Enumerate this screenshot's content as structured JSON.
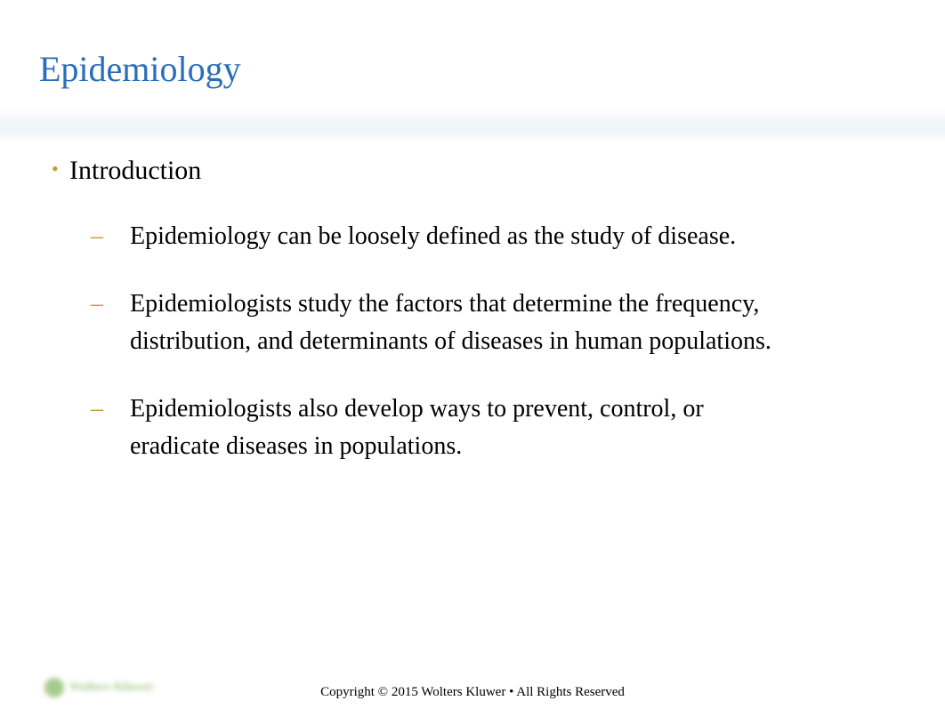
{
  "title": {
    "text": "Epidemiology",
    "color": "#2a6ebb",
    "fontsize": 40
  },
  "content": {
    "level1": {
      "text": "Introduction",
      "bullet_color": "#c79a3a",
      "fontsize": 30
    },
    "level2": [
      {
        "text": "Epidemiology can be loosely defined as the study of disease."
      },
      {
        "text": "Epidemiologists study the factors that determine the frequency, distribution, and determinants of diseases in human populations."
      },
      {
        "text": "Epidemiologists also develop ways to prevent, control, or eradicate diseases in populations."
      }
    ],
    "level2_bullet_color": "#c79a3a",
    "level2_fontsize": 28
  },
  "footer": {
    "copyright": "Copyright © 2015 Wolters Kluwer • All Rights Reserved",
    "logo_text": "Wolters Kluwer",
    "logo_color": "#6ea83f"
  },
  "background_color": "#ffffff",
  "divider_color": "#e6eef4"
}
